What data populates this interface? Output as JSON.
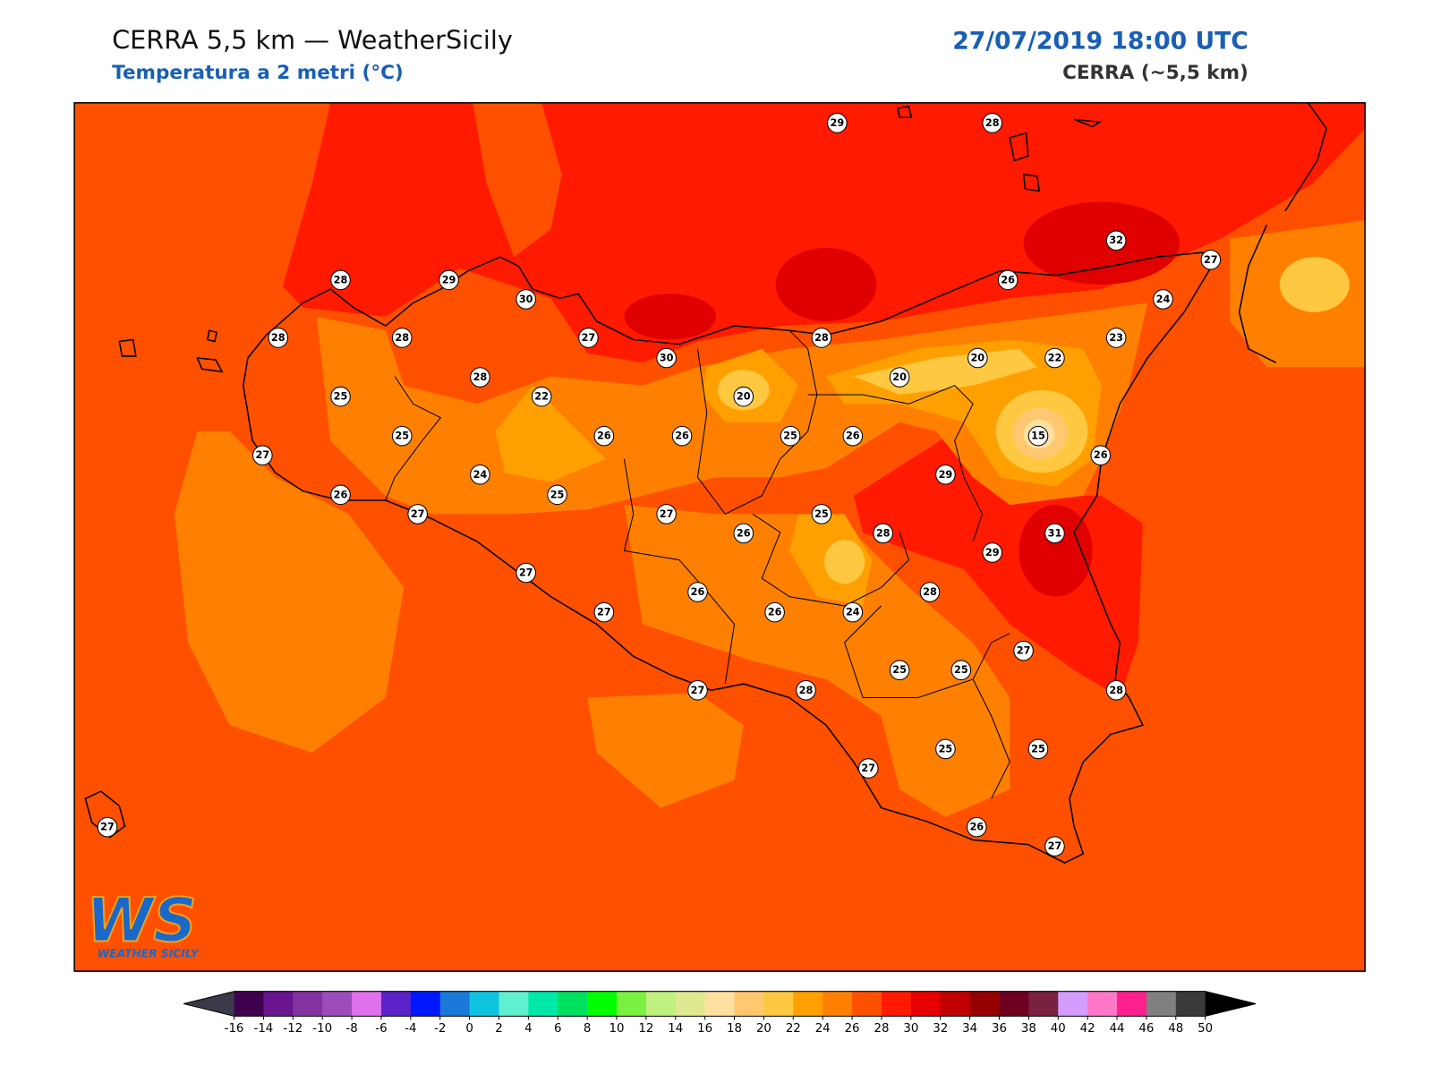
{
  "header": {
    "title": "CERRA 5,5 km — WeatherSicily",
    "subtitle": "Temperatura a 2 metri (°C)",
    "datetime": "27/07/2019 18:00 UTC",
    "model": "CERRA (~5,5 km)"
  },
  "logo": {
    "mark": "WS",
    "text": "WEATHER SICILY"
  },
  "stations": [
    29,
    28,
    32,
    27,
    28,
    29,
    30,
    26,
    24,
    28,
    28,
    27,
    30,
    28,
    23,
    20,
    22,
    20,
    28,
    25,
    22,
    20,
    25,
    26,
    26,
    25,
    26,
    15,
    27,
    26,
    24,
    29,
    26,
    25,
    27,
    27,
    25,
    26,
    28,
    31,
    29,
    27,
    26,
    28,
    27,
    26,
    24,
    27,
    25,
    25,
    27,
    28,
    28,
    25,
    25,
    27,
    27,
    26,
    27
  ],
  "colorbar": {
    "ticks": [
      -16,
      -14,
      -12,
      -10,
      -8,
      -6,
      -4,
      -2,
      0,
      2,
      4,
      6,
      8,
      10,
      12,
      14,
      16,
      18,
      20,
      22,
      24,
      26,
      28,
      30,
      32,
      34,
      36,
      38,
      40,
      42,
      44,
      46,
      48,
      50
    ],
    "colors": [
      "#3f0050",
      "#6a148f",
      "#83339f",
      "#9c4dba",
      "#e071ec",
      "#5a22c8",
      "#0018ff",
      "#1a78d8",
      "#10c4e0",
      "#60f0d0",
      "#00e8a8",
      "#00e060",
      "#00ff00",
      "#7af040",
      "#c0f080",
      "#e0e890",
      "#ffe0a0",
      "#ffc870",
      "#ffc840",
      "#ffa000",
      "#ff8000",
      "#ff5000",
      "#ff1a00",
      "#e60000",
      "#c00000",
      "#960000",
      "#6e0020",
      "#7a2040",
      "#d49cff",
      "#ff78c8",
      "#ff2090",
      "#808080",
      "#3a3a3a"
    ],
    "under_color": "#3a3a4a",
    "over_color": "#000000"
  }
}
